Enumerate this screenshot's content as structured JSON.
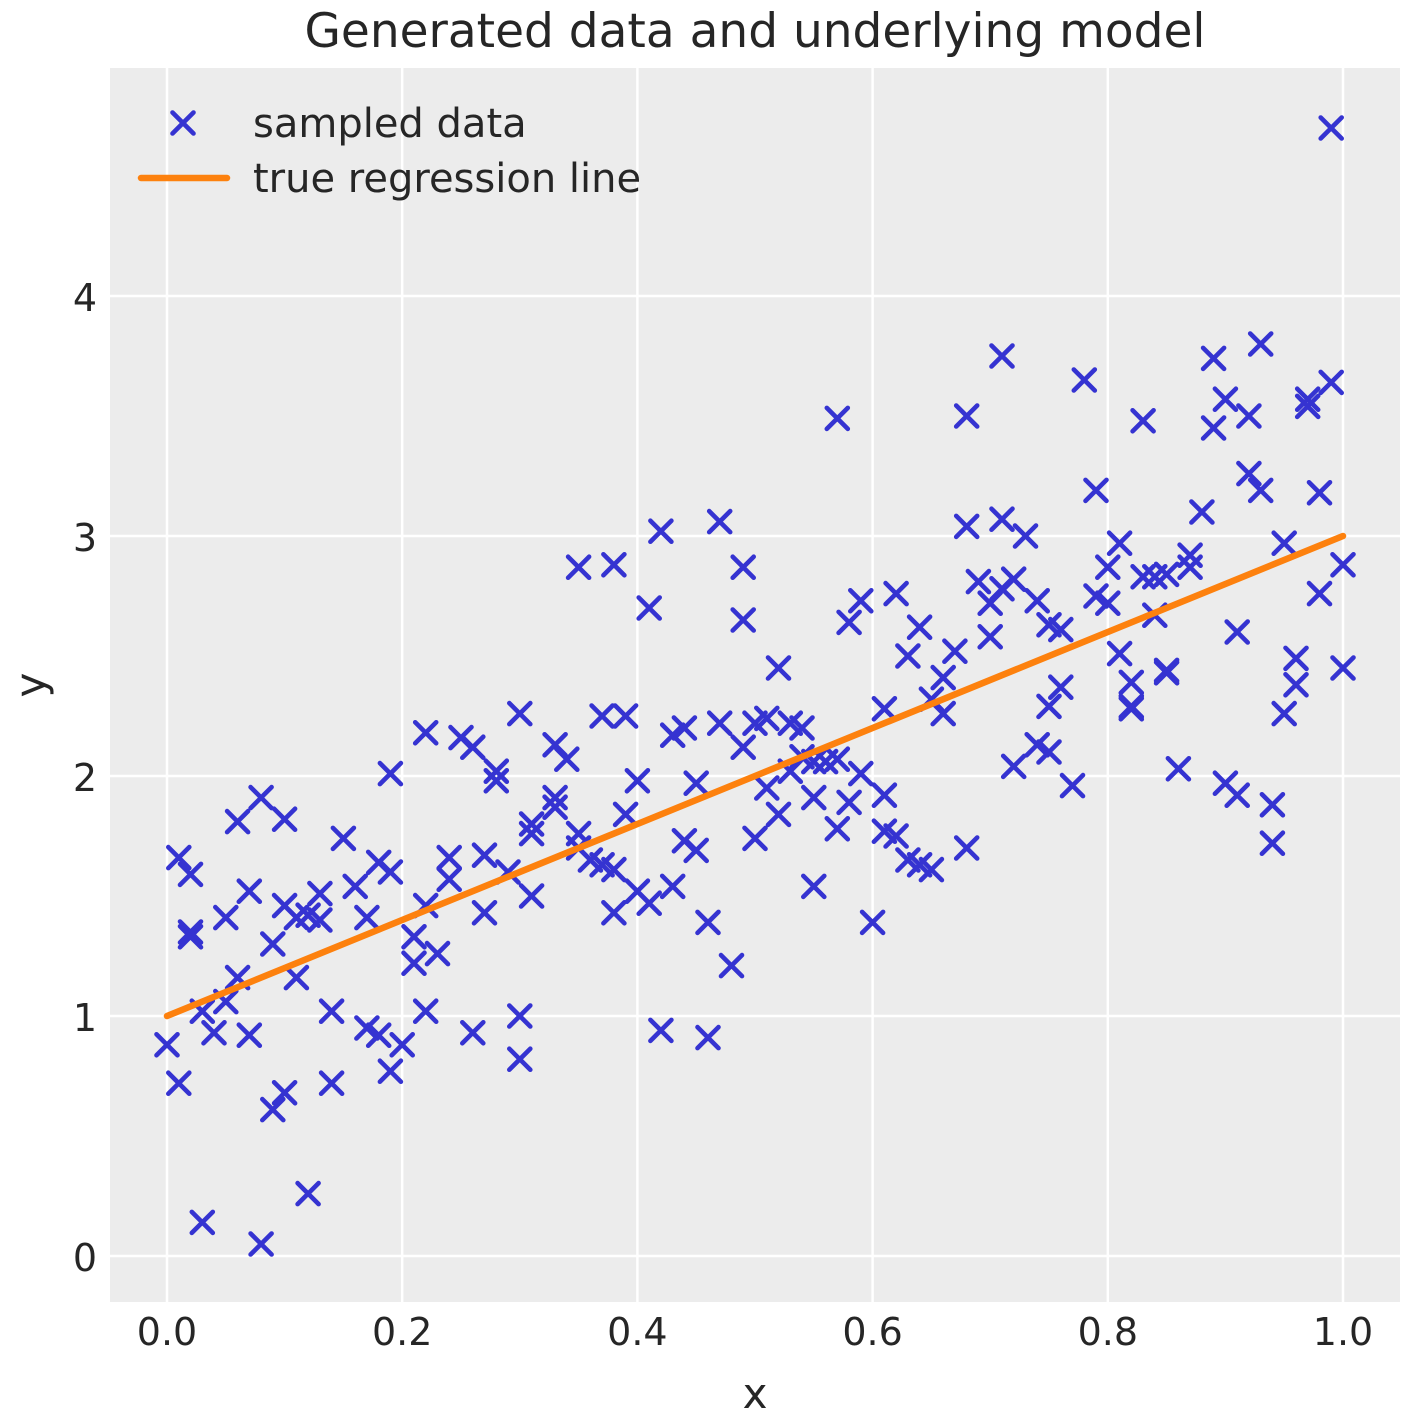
{
  "chart_data": {
    "type": "scatter",
    "title": "Generated data and underlying model",
    "xlabel": "x",
    "ylabel": "y",
    "xlim": [
      -0.05,
      1.05
    ],
    "ylim": [
      -0.19,
      4.95
    ],
    "xticks": [
      0.0,
      0.2,
      0.4,
      0.6,
      0.8,
      1.0
    ],
    "xtick_labels": [
      "0.0",
      "0.2",
      "0.4",
      "0.6",
      "0.8",
      "1.0"
    ],
    "yticks": [
      0,
      1,
      2,
      3,
      4
    ],
    "ytick_labels": [
      "0",
      "1",
      "2",
      "3",
      "4"
    ],
    "grid": true,
    "legend_position": "upper left",
    "colors": {
      "points": "#3533d1",
      "line": "#fd810e",
      "plot_bg": "#ececec",
      "grid": "#ffffff",
      "text": "#262626"
    },
    "legend": [
      {
        "label": "sampled data",
        "kind": "marker"
      },
      {
        "label": "true regression line",
        "kind": "line"
      }
    ],
    "series": [
      {
        "name": "sampled data",
        "type": "scatter",
        "marker": "x",
        "points": [
          [
            0.99,
            4.7
          ],
          [
            0.93,
            3.8
          ],
          [
            0.71,
            3.75
          ],
          [
            0.89,
            3.74
          ],
          [
            0.78,
            3.65
          ],
          [
            0.99,
            3.64
          ],
          [
            0.9,
            3.57
          ],
          [
            0.97,
            3.57
          ],
          [
            0.97,
            3.54
          ],
          [
            0.57,
            3.49
          ],
          [
            0.68,
            3.5
          ],
          [
            0.83,
            3.48
          ],
          [
            0.89,
            3.45
          ],
          [
            0.92,
            3.5
          ],
          [
            0.92,
            3.26
          ],
          [
            0.79,
            3.19
          ],
          [
            0.93,
            3.19
          ],
          [
            0.98,
            3.18
          ],
          [
            0.88,
            3.1
          ],
          [
            0.71,
            3.07
          ],
          [
            0.47,
            3.06
          ],
          [
            0.68,
            3.04
          ],
          [
            0.42,
            3.02
          ],
          [
            0.73,
            3.0
          ],
          [
            0.95,
            2.97
          ],
          [
            0.81,
            2.97
          ],
          [
            0.87,
            2.92
          ],
          [
            0.35,
            2.87
          ],
          [
            0.38,
            2.88
          ],
          [
            0.49,
            2.87
          ],
          [
            0.87,
            2.87
          ],
          [
            0.8,
            2.87
          ],
          [
            1.0,
            2.88
          ],
          [
            0.85,
            2.84
          ],
          [
            0.83,
            2.83
          ],
          [
            0.84,
            2.83
          ],
          [
            0.69,
            2.81
          ],
          [
            0.72,
            2.82
          ],
          [
            0.71,
            2.78
          ],
          [
            0.98,
            2.76
          ],
          [
            0.62,
            2.76
          ],
          [
            0.79,
            2.75
          ],
          [
            0.59,
            2.73
          ],
          [
            0.74,
            2.73
          ],
          [
            0.7,
            2.72
          ],
          [
            0.8,
            2.72
          ],
          [
            0.41,
            2.7
          ],
          [
            0.84,
            2.67
          ],
          [
            0.49,
            2.65
          ],
          [
            0.58,
            2.64
          ],
          [
            0.75,
            2.63
          ],
          [
            0.64,
            2.62
          ],
          [
            0.76,
            2.61
          ],
          [
            0.91,
            2.6
          ],
          [
            0.7,
            2.58
          ],
          [
            0.67,
            2.52
          ],
          [
            0.81,
            2.51
          ],
          [
            0.63,
            2.5
          ],
          [
            0.96,
            2.49
          ],
          [
            0.52,
            2.45
          ],
          [
            1.0,
            2.45
          ],
          [
            0.85,
            2.44
          ],
          [
            0.85,
            2.43
          ],
          [
            0.66,
            2.41
          ],
          [
            0.82,
            2.39
          ],
          [
            0.76,
            2.37
          ],
          [
            0.96,
            2.38
          ],
          [
            0.65,
            2.32
          ],
          [
            0.75,
            2.29
          ],
          [
            0.82,
            2.29
          ],
          [
            0.82,
            2.28
          ],
          [
            0.66,
            2.26
          ],
          [
            0.95,
            2.26
          ],
          [
            0.3,
            2.26
          ],
          [
            0.61,
            2.28
          ],
          [
            0.37,
            2.25
          ],
          [
            0.39,
            2.25
          ],
          [
            0.51,
            2.24
          ],
          [
            0.47,
            2.22
          ],
          [
            0.5,
            2.22
          ],
          [
            0.53,
            2.22
          ],
          [
            0.54,
            2.2
          ],
          [
            0.44,
            2.2
          ],
          [
            0.22,
            2.18
          ],
          [
            0.43,
            2.17
          ],
          [
            0.25,
            2.16
          ],
          [
            0.74,
            2.13
          ],
          [
            0.33,
            2.13
          ],
          [
            0.26,
            2.12
          ],
          [
            0.49,
            2.12
          ],
          [
            0.75,
            2.1
          ],
          [
            0.54,
            2.08
          ],
          [
            0.34,
            2.07
          ],
          [
            0.57,
            2.07
          ],
          [
            0.55,
            2.06
          ],
          [
            0.56,
            2.06
          ],
          [
            0.72,
            2.04
          ],
          [
            0.86,
            2.03
          ],
          [
            0.53,
            2.02
          ],
          [
            0.28,
            2.02
          ],
          [
            0.19,
            2.01
          ],
          [
            0.59,
            2.01
          ],
          [
            0.4,
            1.98
          ],
          [
            0.28,
            1.98
          ],
          [
            0.45,
            1.97
          ],
          [
            0.77,
            1.96
          ],
          [
            0.9,
            1.97
          ],
          [
            0.51,
            1.95
          ],
          [
            0.91,
            1.92
          ],
          [
            0.61,
            1.92
          ],
          [
            0.08,
            1.91
          ],
          [
            0.33,
            1.91
          ],
          [
            0.55,
            1.91
          ],
          [
            0.58,
            1.89
          ],
          [
            0.94,
            1.88
          ],
          [
            0.33,
            1.87
          ],
          [
            0.39,
            1.84
          ],
          [
            0.52,
            1.84
          ],
          [
            0.06,
            1.81
          ],
          [
            0.1,
            1.82
          ],
          [
            0.31,
            1.8
          ],
          [
            0.57,
            1.78
          ],
          [
            0.61,
            1.77
          ],
          [
            0.35,
            1.76
          ],
          [
            0.31,
            1.76
          ],
          [
            0.62,
            1.75
          ],
          [
            0.15,
            1.74
          ],
          [
            0.44,
            1.73
          ],
          [
            0.5,
            1.74
          ],
          [
            0.94,
            1.72
          ],
          [
            0.68,
            1.7
          ],
          [
            0.35,
            1.7
          ],
          [
            0.45,
            1.69
          ],
          [
            0.27,
            1.67
          ],
          [
            0.01,
            1.66
          ],
          [
            0.24,
            1.66
          ],
          [
            0.36,
            1.65
          ],
          [
            0.37,
            1.63
          ],
          [
            0.18,
            1.64
          ],
          [
            0.63,
            1.65
          ],
          [
            0.64,
            1.63
          ],
          [
            0.65,
            1.61
          ],
          [
            0.38,
            1.61
          ],
          [
            0.19,
            1.6
          ],
          [
            0.02,
            1.59
          ],
          [
            0.24,
            1.57
          ],
          [
            0.29,
            1.6
          ],
          [
            0.55,
            1.54
          ],
          [
            0.43,
            1.54
          ],
          [
            0.16,
            1.54
          ],
          [
            0.07,
            1.52
          ],
          [
            0.13,
            1.51
          ],
          [
            0.4,
            1.52
          ],
          [
            0.31,
            1.5
          ],
          [
            0.41,
            1.47
          ],
          [
            0.22,
            1.46
          ],
          [
            0.1,
            1.46
          ],
          [
            0.38,
            1.43
          ],
          [
            0.27,
            1.43
          ],
          [
            0.12,
            1.42
          ],
          [
            0.05,
            1.41
          ],
          [
            0.11,
            1.41
          ],
          [
            0.17,
            1.41
          ],
          [
            0.13,
            1.4
          ],
          [
            0.46,
            1.39
          ],
          [
            0.6,
            1.39
          ],
          [
            0.02,
            1.35
          ],
          [
            0.02,
            1.33
          ],
          [
            0.21,
            1.33
          ],
          [
            0.09,
            1.3
          ],
          [
            0.23,
            1.26
          ],
          [
            0.21,
            1.22
          ],
          [
            0.48,
            1.21
          ],
          [
            0.06,
            1.16
          ],
          [
            0.11,
            1.16
          ],
          [
            0.05,
            1.06
          ],
          [
            0.14,
            1.02
          ],
          [
            0.03,
            1.02
          ],
          [
            0.22,
            1.02
          ],
          [
            0.3,
            1.0
          ],
          [
            0.17,
            0.95
          ],
          [
            0.42,
            0.94
          ],
          [
            0.26,
            0.93
          ],
          [
            0.04,
            0.93
          ],
          [
            0.07,
            0.92
          ],
          [
            0.18,
            0.92
          ],
          [
            0.46,
            0.91
          ],
          [
            0.0,
            0.88
          ],
          [
            0.2,
            0.88
          ],
          [
            0.3,
            0.82
          ],
          [
            0.19,
            0.77
          ],
          [
            0.01,
            0.72
          ],
          [
            0.14,
            0.72
          ],
          [
            0.1,
            0.68
          ],
          [
            0.09,
            0.61
          ],
          [
            0.12,
            0.26
          ],
          [
            0.03,
            0.14
          ],
          [
            0.08,
            0.05
          ]
        ]
      },
      {
        "name": "true regression line",
        "type": "line",
        "x": [
          0.0,
          1.0
        ],
        "y": [
          1.0,
          3.0
        ]
      }
    ]
  }
}
